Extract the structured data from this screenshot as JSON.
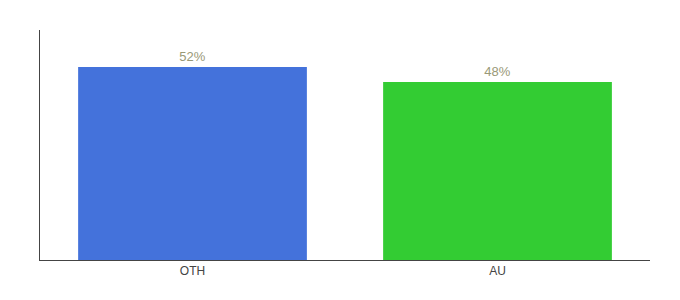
{
  "chart_data": {
    "type": "bar",
    "categories": [
      "OTH",
      "AU"
    ],
    "values": [
      52,
      48
    ],
    "value_labels": [
      "52%",
      "48%"
    ],
    "colors": [
      "#4472db",
      "#33cc33"
    ],
    "ylim": [
      0,
      62
    ],
    "grid": false,
    "data_labels": true,
    "tick_labels": "x"
  }
}
